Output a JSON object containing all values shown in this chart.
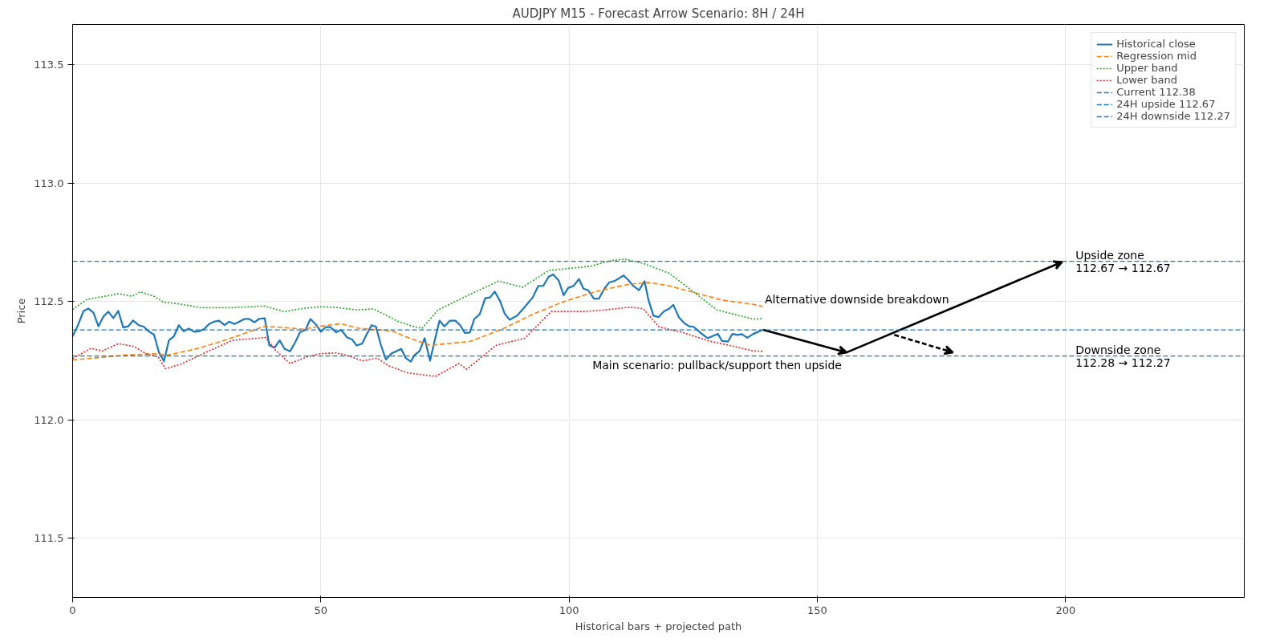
{
  "chart_data": {
    "type": "line",
    "title": "AUDJPY M15 - Forecast Arrow Scenario: 8H / 24H",
    "xlabel": "Historical bars + projected path",
    "ylabel": "Price",
    "xlim": [
      0,
      236
    ],
    "ylim": [
      111.25,
      113.67
    ],
    "xticks": [
      0,
      50,
      100,
      150,
      200
    ],
    "yticks": [
      {
        "value": 111.5,
        "label": "111.5"
      },
      {
        "value": 112.0,
        "label": "112.0"
      },
      {
        "value": 112.5,
        "label": "112.5"
      },
      {
        "value": 113.0,
        "label": "113.0"
      },
      {
        "value": 113.5,
        "label": "113.5"
      }
    ],
    "grid": true,
    "legend": "top right",
    "series": [
      {
        "name": "Historical close",
        "color": "#1f77b4",
        "line_style": "solid",
        "x": [
          0,
          1,
          2.2,
          3.2,
          4.2,
          5.2,
          6.2,
          7.2,
          8.2,
          9.2,
          10.2,
          11.2,
          12.2,
          13.3,
          14.3,
          15.3,
          16.4,
          17.4,
          18.4,
          19.4,
          20.4,
          21.4,
          22.4,
          23.4,
          24.5,
          25.5,
          26.5,
          27.5,
          28.5,
          29.5,
          30.6,
          31.5,
          32.6,
          33.6,
          34.6,
          35.5,
          36.6,
          37.6,
          38.7,
          39.6,
          40.7,
          41.7,
          42.7,
          43.8,
          44.8,
          45.8,
          46.9,
          47.9,
          49.1,
          50.0,
          51.0,
          51.9,
          53.1,
          54.1,
          55.3,
          56.3,
          57.2,
          58.3,
          59.2,
          60.2,
          61.1,
          62.1,
          63.1,
          64.2,
          66.2,
          67.1,
          68.1,
          68.9,
          69.9,
          70.9,
          72.0,
          72.9,
          73.9,
          74.9,
          76.0,
          77.1,
          78.1,
          79.0,
          80.0,
          80.9,
          82.0,
          83.1,
          84.1,
          85.0,
          86.1,
          87.0,
          88.0,
          89.5,
          90.8,
          92.7,
          93.8,
          94.8,
          95.9,
          96.8,
          97.9,
          98.9,
          99.8,
          100.9,
          102.0,
          102.9,
          103.8,
          105.0,
          106.0,
          107.1,
          108.1,
          109.1,
          111.0,
          112.0,
          112.9,
          114.1,
          115.2,
          116.0,
          117.0,
          118.0,
          119.1,
          120.2,
          121.0,
          122.1,
          123.3,
          124.2,
          125.1,
          126.5,
          127.9,
          129.0,
          130.0,
          130.8,
          132.0,
          132.9,
          133.9,
          134.8,
          135.9,
          137.1,
          139.0
        ],
        "values": [
          112.353,
          112.396,
          112.46,
          112.47,
          112.453,
          112.395,
          112.436,
          112.457,
          112.43,
          112.46,
          112.39,
          112.395,
          112.42,
          112.4,
          112.394,
          112.374,
          112.36,
          112.284,
          112.248,
          112.336,
          112.353,
          112.4,
          112.374,
          112.386,
          112.372,
          112.374,
          112.384,
          112.405,
          112.415,
          112.419,
          112.4,
          112.415,
          112.405,
          112.415,
          112.426,
          112.427,
          112.412,
          112.427,
          112.429,
          112.315,
          112.305,
          112.336,
          112.3,
          112.29,
          112.326,
          112.37,
          112.38,
          112.426,
          112.401,
          112.372,
          112.392,
          112.392,
          112.37,
          112.38,
          112.348,
          112.34,
          112.314,
          112.322,
          112.36,
          112.4,
          112.394,
          112.316,
          112.255,
          112.28,
          112.3,
          112.261,
          112.246,
          112.274,
          112.291,
          112.345,
          112.25,
          112.333,
          112.419,
          112.395,
          112.419,
          112.419,
          112.399,
          112.367,
          112.369,
          112.426,
          112.446,
          112.514,
          112.517,
          112.542,
          112.502,
          112.45,
          112.423,
          112.44,
          112.47,
          112.518,
          112.566,
          112.566,
          112.605,
          112.614,
          112.589,
          112.526,
          112.557,
          112.566,
          112.595,
          112.554,
          112.548,
          112.512,
          112.512,
          112.554,
          112.581,
          112.586,
          112.61,
          112.589,
          112.566,
          112.548,
          112.586,
          112.506,
          112.44,
          112.434,
          112.458,
          112.47,
          112.486,
          112.434,
          112.407,
          112.395,
          112.393,
          112.367,
          112.345,
          112.355,
          112.363,
          112.333,
          112.331,
          112.363,
          112.359,
          112.362,
          112.347,
          112.363,
          112.38
        ]
      },
      {
        "name": "Regression mid",
        "color": "#ff7f0e",
        "line_style": "dashed",
        "x": [
          0,
          5.2,
          10.8,
          16.2,
          19.5,
          24.3,
          29.1,
          33.8,
          38.6,
          42.6,
          46.5,
          50,
          54.1,
          57.3,
          60.5,
          64.2,
          67.9,
          72.0,
          80,
          86.3,
          92.7,
          99,
          105.4,
          111.8,
          116,
          120.2,
          125.5,
          130.8,
          137.1,
          139
        ],
        "values": [
          112.253,
          112.263,
          112.274,
          112.279,
          112.275,
          112.297,
          112.326,
          112.359,
          112.395,
          112.39,
          112.383,
          112.396,
          112.406,
          112.388,
          112.382,
          112.376,
          112.345,
          112.315,
          112.331,
          112.381,
          112.446,
          112.5,
          112.542,
          112.572,
          112.58,
          112.566,
          112.536,
          112.506,
          112.488,
          112.479
        ]
      },
      {
        "name": "Upper band",
        "color": "#2ca02c",
        "line_style": "dotted",
        "x": [
          0,
          2.9,
          7.6,
          9.2,
          12,
          13.6,
          16.4,
          18.3,
          21.1,
          25.9,
          32.2,
          38.6,
          42.6,
          46.5,
          50,
          53.1,
          57.3,
          60.5,
          62.6,
          65.3,
          68.4,
          70.4,
          73.6,
          80,
          85.8,
          90.6,
          95.9,
          104.3,
          108.6,
          111.2,
          114.9,
          120.2,
          124.5,
          129.8,
          137.1,
          139
        ],
        "values": [
          112.466,
          112.509,
          112.526,
          112.533,
          112.522,
          112.541,
          112.522,
          112.497,
          112.491,
          112.474,
          112.474,
          112.481,
          112.457,
          112.471,
          112.478,
          112.475,
          112.464,
          112.469,
          112.448,
          112.418,
          112.396,
          112.387,
          112.464,
          112.53,
          112.586,
          112.56,
          112.631,
          112.649,
          112.673,
          112.679,
          112.661,
          112.619,
          112.55,
          112.464,
          112.426,
          112.427
        ]
      },
      {
        "name": "Lower band",
        "color": "#d62728",
        "line_style": "dotted",
        "x": [
          0,
          3.7,
          6,
          9.2,
          12.4,
          14.8,
          17.2,
          18.7,
          21.9,
          26.7,
          32.2,
          38.9,
          41,
          43.8,
          47.3,
          50,
          53.1,
          55.2,
          58.4,
          61.3,
          63.7,
          67.4,
          73.1,
          77.8,
          79.4,
          85.3,
          91.1,
          96.4,
          103.3,
          107,
          112.3,
          114.9,
          118.1,
          122.9,
          128.2,
          133.5,
          137.1,
          139
        ],
        "values": [
          112.259,
          112.302,
          112.291,
          112.322,
          112.31,
          112.279,
          112.267,
          112.216,
          112.236,
          112.284,
          112.336,
          112.348,
          112.291,
          112.238,
          112.267,
          112.28,
          112.283,
          112.273,
          112.249,
          112.261,
          112.228,
          112.199,
          112.184,
          112.238,
          112.214,
          112.315,
          112.345,
          112.458,
          112.458,
          112.464,
          112.476,
          112.47,
          112.393,
          112.369,
          112.333,
          112.309,
          112.291,
          112.29
        ]
      },
      {
        "color": "#000000",
        "line_style": "solid",
        "x": [
          139.1,
          155.9,
          199.3
        ],
        "values": [
          112.38,
          112.285,
          112.667
        ]
      },
      {
        "color": "#000000",
        "line_style": "dashed",
        "x": [
          165.5,
          177.3
        ],
        "values": [
          112.359,
          112.285
        ]
      }
    ],
    "ref_lines": [
      {
        "axis": "y",
        "value": 112.38,
        "label": "Current 112.38",
        "color": "#1f77b4",
        "line_style": "dashed"
      },
      {
        "axis": "y",
        "value": 112.67,
        "label": "24H upside 112.67",
        "color": "#1f77b4",
        "line_style": "dashed"
      },
      {
        "axis": "y",
        "value": 112.27,
        "label": "24H downside 112.27",
        "color": "#1f77b4",
        "line_style": "dashed"
      }
    ],
    "annotations": [
      {
        "text": "Main scenario: pullback/support then upside",
        "x": 155.9,
        "y": 112.285
      },
      {
        "text": "Alternative downside breakdown",
        "x": 139.1,
        "y": 112.38
      },
      {
        "text": "Upside zone\n112.67 → 112.67",
        "x": 202,
        "y": 112.67
      },
      {
        "text": "Downside zone\n112.28 → 112.27",
        "x": 202,
        "y": 112.27
      }
    ]
  }
}
